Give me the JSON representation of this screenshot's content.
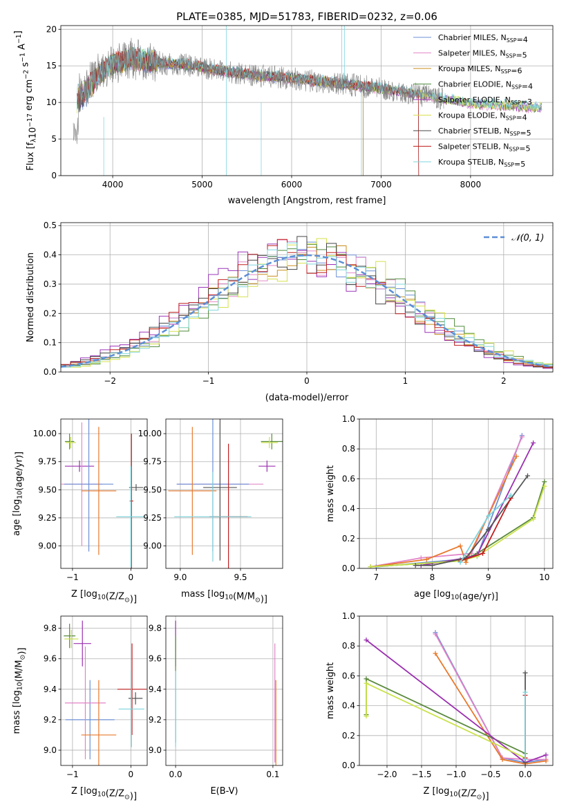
{
  "title": "PLATE=0385, MJD=51783, FIBERID=0232, z=0.06",
  "colors": {
    "Chabrier MILES": "#6b8fd6",
    "Salpeter MILES": "#e28ac7",
    "Kroupa MILES": "#c98d1c",
    "Chabrier ELODIE": "#4f8a3b",
    "Salpeter ELODIE": "#9a35b8",
    "Kroupa ELODIE": "#d6e04a",
    "Chabrier STELIB": "#444444",
    "Salpeter STELIB": "#c11e1e",
    "Kroupa STELIB": "#7fd6de",
    "gaussian": "#5b8ed6",
    "orange": "#e8792b",
    "green": "#5a8a3c",
    "purple": "#9b2fb0",
    "lime": "#c9e24a",
    "cyan": "#7cd3dc",
    "grey": "#555555",
    "pink": "#e184c8",
    "blue": "#6b8fd6"
  },
  "chart_data": [
    {
      "id": "spectrum",
      "type": "line",
      "xlabel": "wavelength [Angstrom, rest frame]",
      "ylabel": "Flux [f",
      "ylabel_sub": "λ",
      "ylabel_rest": "10",
      "ylabel_exp": "−17",
      "ylabel_units": " erg cm",
      "ylabel_units_exp": "−2",
      "ylabel_units2": " s",
      "ylabel_units2_exp": "−1",
      "ylabel_units3": " A",
      "ylabel_units3_exp": "−1",
      "ylabel_end": "]",
      "xlim": [
        3420,
        8920
      ],
      "ylim": [
        0,
        20.5
      ],
      "xticks": [
        4000,
        5000,
        6000,
        7000,
        8000
      ],
      "yticks": [
        0,
        5,
        10,
        15,
        20
      ],
      "legend_position": "top-right",
      "legend": [
        {
          "label": "Chabrier MILES, N",
          "sub": "SSP",
          "eq": "=4"
        },
        {
          "label": "Salpeter MILES, N",
          "sub": "SSP",
          "eq": "=5"
        },
        {
          "label": "Kroupa MILES, N",
          "sub": "SSP",
          "eq": "=6"
        },
        {
          "label": "Chabrier ELODIE, N",
          "sub": "SSP",
          "eq": "=4"
        },
        {
          "label": "Salpeter ELODIE, N",
          "sub": "SSP",
          "eq": "=3"
        },
        {
          "label": "Kroupa ELODIE, N",
          "sub": "SSP",
          "eq": "=4"
        },
        {
          "label": "Chabrier STELIB, N",
          "sub": "SSP",
          "eq": "=5"
        },
        {
          "label": "Salpeter STELIB, N",
          "sub": "SSP",
          "eq": "=5"
        },
        {
          "label": "Kroupa STELIB, N",
          "sub": "SSP",
          "eq": "=5"
        }
      ],
      "continuum": [
        [
          3600,
          11.0
        ],
        [
          3700,
          12.0
        ],
        [
          3800,
          13.5
        ],
        [
          3900,
          14.5
        ],
        [
          4000,
          15.2
        ],
        [
          4200,
          16.0
        ],
        [
          4400,
          15.7
        ],
        [
          4600,
          15.3
        ],
        [
          4800,
          15.2
        ],
        [
          5000,
          14.8
        ],
        [
          5200,
          14.3
        ],
        [
          5400,
          14.0
        ],
        [
          5600,
          13.7
        ],
        [
          5800,
          13.5
        ],
        [
          6000,
          13.3
        ],
        [
          6200,
          13.0
        ],
        [
          6400,
          12.8
        ],
        [
          6600,
          12.5
        ],
        [
          6800,
          12.2
        ],
        [
          7000,
          11.9
        ],
        [
          7200,
          11.5
        ],
        [
          7400,
          11.1
        ],
        [
          7600,
          10.7
        ],
        [
          7800,
          10.3
        ],
        [
          8000,
          9.9
        ],
        [
          8200,
          9.7
        ],
        [
          8400,
          9.6
        ],
        [
          8600,
          9.4
        ],
        [
          8800,
          9.3
        ]
      ],
      "model_dropouts": [
        {
          "series": "Chabrier MILES",
          "x_end": 6800
        },
        {
          "series": "Kroupa MILES",
          "x_end": 6800
        },
        {
          "series": "Salpeter STELIB",
          "x_end": 7420
        },
        {
          "series": "Chabrier STELIB",
          "x_end": 7420
        },
        {
          "series": "Kroupa ELODIE",
          "x_start": 3900
        }
      ]
    },
    {
      "id": "residuals",
      "type": "line",
      "xlabel": "(data-model)/error",
      "ylabel": "Normed distribution",
      "xlim": [
        -2.5,
        2.5
      ],
      "ylim": [
        0,
        0.51
      ],
      "xticks": [
        -2,
        -1,
        0,
        1,
        2
      ],
      "yticks": [
        0.0,
        0.1,
        0.2,
        0.3,
        0.4,
        0.5
      ],
      "legend_position": "top-right",
      "legend_label": "𝒩(0, 1)",
      "bin_width": 0.1,
      "gaussian": {
        "mean": 0,
        "sigma": 1
      },
      "series": [
        {
          "name": "Chabrier MILES",
          "color_key": "Chabrier MILES",
          "offset": 0.0
        },
        {
          "name": "Salpeter MILES",
          "color_key": "Salpeter MILES",
          "offset": 0.02
        },
        {
          "name": "Kroupa MILES",
          "color_key": "Kroupa MILES",
          "offset": 0.05
        },
        {
          "name": "Chabrier ELODIE",
          "color_key": "Chabrier ELODIE",
          "offset": -0.1
        },
        {
          "name": "Salpeter ELODIE",
          "color_key": "Salpeter ELODIE",
          "offset": 0.15
        },
        {
          "name": "Kroupa ELODIE",
          "color_key": "Kroupa ELODIE",
          "offset": -0.12
        },
        {
          "name": "Chabrier STELIB",
          "color_key": "Chabrier STELIB",
          "offset": 0.1
        },
        {
          "name": "Salpeter STELIB",
          "color_key": "Salpeter STELIB",
          "offset": 0.08
        },
        {
          "name": "Kroupa STELIB",
          "color_key": "Kroupa STELIB",
          "offset": -0.03
        }
      ]
    },
    {
      "id": "age-vs-Z",
      "type": "scatter",
      "xlabel": "Z [log",
      "xlabel_sub": "10",
      "xlabel_end": "(Z/Z",
      "xlabel_odot": "⊙",
      "xlabel_close": ")]",
      "ylabel": "age  [log",
      "ylabel_sub": "10",
      "ylabel_end": "(age/yr)]",
      "xlim": [
        -1.2,
        0.28
      ],
      "ylim": [
        8.8,
        10.13
      ],
      "xticks": [
        -1,
        0
      ],
      "yticks": [
        9.0,
        9.25,
        9.5,
        9.75,
        10.0
      ],
      "errorbars": [
        {
          "x": -1.05,
          "xerr": 0.08,
          "y": 9.93,
          "yerr": 0.07,
          "color_key": "green"
        },
        {
          "x": -1.03,
          "xerr": 0.09,
          "y": 9.92,
          "yerr": 0.05,
          "color_key": "lime"
        },
        {
          "x": -0.88,
          "xerr": 0.25,
          "y": 9.71,
          "yerr": 0.05,
          "color_key": "purple"
        },
        {
          "x": -0.84,
          "xerr": 0.35,
          "y": 9.55,
          "yerr": 0.55,
          "color_key": "Salpeter MILES"
        },
        {
          "x": -0.72,
          "xerr": 0.42,
          "y": 9.55,
          "yerr": 0.6,
          "color_key": "blue"
        },
        {
          "x": -0.55,
          "xerr": 0.3,
          "y": 9.49,
          "yerr": 0.57,
          "color_key": "orange"
        },
        {
          "x": 0.09,
          "xerr": 0.12,
          "y": 9.52,
          "yerr": 0.03,
          "color_key": "grey"
        },
        {
          "x": 0.01,
          "xerr": 0.03,
          "y": 9.4,
          "yerr": 0.6,
          "color_key": "Salpeter STELIB"
        },
        {
          "x": 0.0,
          "xerr": 0.25,
          "y": 9.26,
          "yerr": 0.45,
          "color_key": "cyan"
        }
      ]
    },
    {
      "id": "age-vs-mass",
      "type": "scatter",
      "xlabel": "mass [log",
      "xlabel_sub": "10",
      "xlabel_end": "(M/M",
      "xlabel_odot": "⊙",
      "xlabel_close": ")]",
      "xlim": [
        8.88,
        9.85
      ],
      "ylim": [
        8.8,
        10.13
      ],
      "xticks": [
        9.0,
        9.5
      ],
      "yticks": [
        9.0,
        9.25,
        9.5,
        9.75,
        10.0
      ],
      "errorbars": [
        {
          "x": 9.76,
          "xerr": 0.09,
          "y": 9.93,
          "yerr": 0.07,
          "color_key": "green"
        },
        {
          "x": 9.74,
          "xerr": 0.07,
          "y": 9.92,
          "yerr": 0.05,
          "color_key": "lime"
        },
        {
          "x": 9.72,
          "xerr": 0.07,
          "y": 9.71,
          "yerr": 0.05,
          "color_key": "purple"
        },
        {
          "x": 9.33,
          "xerr": 0.36,
          "y": 9.55,
          "yerr": 0.55,
          "color_key": "Salpeter MILES"
        },
        {
          "x": 9.27,
          "xerr": 0.3,
          "y": 9.55,
          "yerr": 0.6,
          "color_key": "blue"
        },
        {
          "x": 9.1,
          "xerr": 0.2,
          "y": 9.49,
          "yerr": 0.57,
          "color_key": "orange"
        },
        {
          "x": 9.33,
          "xerr": 0.14,
          "y": 9.52,
          "yerr": 0.65,
          "color_key": "grey"
        },
        {
          "x": 9.4,
          "xerr": 0.16,
          "y": 9.26,
          "yerr": 0.65,
          "color_key": "Salpeter STELIB"
        },
        {
          "x": 9.27,
          "xerr": 0.32,
          "y": 9.26,
          "yerr": 0.4,
          "color_key": "cyan"
        }
      ]
    },
    {
      "id": "weight-vs-age",
      "type": "line",
      "xlabel": "age  [log",
      "xlabel_sub": "10",
      "xlabel_end": "(age/yr)]",
      "ylabel": "mass weight",
      "xlim": [
        6.7,
        10.15
      ],
      "ylim": [
        0,
        1.0
      ],
      "xticks": [
        7,
        8,
        9,
        10
      ],
      "yticks": [
        0.0,
        0.2,
        0.4,
        0.6,
        0.8,
        1.0
      ],
      "series": [
        {
          "name": "Chabrier MILES",
          "color_key": "blue",
          "x": [
            7.0,
            8.5,
            8.8,
            9.6
          ],
          "y": [
            0.01,
            0.06,
            0.08,
            0.89
          ]
        },
        {
          "name": "Salpeter MILES",
          "color_key": "pink",
          "x": [
            6.9,
            7.8,
            8.7,
            9.6
          ],
          "y": [
            0.01,
            0.07,
            0.1,
            0.88
          ]
        },
        {
          "name": "Kroupa MILES",
          "color_key": "orange",
          "x": [
            6.9,
            7.9,
            8.5,
            8.6,
            9.5
          ],
          "y": [
            0.01,
            0.06,
            0.15,
            0.04,
            0.75
          ]
        },
        {
          "name": "Chabrier ELODIE",
          "color_key": "green",
          "x": [
            6.9,
            8.5,
            8.8,
            9.8,
            10.0
          ],
          "y": [
            0.01,
            0.05,
            0.1,
            0.34,
            0.58
          ]
        },
        {
          "name": "Salpeter ELODIE",
          "color_key": "purple",
          "x": [
            7.8,
            8.6,
            8.8,
            9.8
          ],
          "y": [
            0.02,
            0.07,
            0.09,
            0.84
          ]
        },
        {
          "name": "Kroupa ELODIE",
          "color_key": "lime",
          "x": [
            6.9,
            8.5,
            8.8,
            9.8,
            10.0
          ],
          "y": [
            0.01,
            0.05,
            0.08,
            0.33,
            0.55
          ]
        },
        {
          "name": "Chabrier STELIB",
          "color_key": "grey",
          "x": [
            7.7,
            8.0,
            8.6,
            9.0,
            9.7
          ],
          "y": [
            0.02,
            0.02,
            0.07,
            0.26,
            0.62
          ]
        },
        {
          "name": "Salpeter STELIB",
          "color_key": "Salpeter STELIB",
          "x": [
            8.5,
            8.9,
            9.4
          ],
          "y": [
            0.05,
            0.1,
            0.47
          ]
        },
        {
          "name": "Kroupa STELIB",
          "color_key": "cyan",
          "x": [
            8.5,
            9.0,
            9.4
          ],
          "y": [
            0.04,
            0.35,
            0.49
          ]
        }
      ]
    },
    {
      "id": "mass-vs-Z",
      "type": "scatter",
      "xlabel": "Z [log",
      "xlabel_sub": "10",
      "xlabel_end": "(Z/Z",
      "xlabel_odot": "⊙",
      "xlabel_close": ")]",
      "ylabel": "mass [log",
      "ylabel_sub": "10",
      "ylabel_end": "(M/M",
      "ylabel_odot": "⊙",
      "ylabel_close": ")]",
      "xlim": [
        -1.2,
        0.28
      ],
      "ylim": [
        8.9,
        9.88
      ],
      "xticks": [
        -1,
        0
      ],
      "yticks": [
        9.0,
        9.2,
        9.4,
        9.6,
        9.8
      ],
      "errorbars": [
        {
          "x": -1.05,
          "xerr": 0.1,
          "y": 9.75,
          "yerr": 0.08,
          "color_key": "green"
        },
        {
          "x": -1.02,
          "xerr": 0.12,
          "y": 9.73,
          "yerr": 0.06,
          "color_key": "lime"
        },
        {
          "x": -0.83,
          "xerr": 0.15,
          "y": 9.7,
          "yerr": 0.15,
          "color_key": "purple"
        },
        {
          "x": -0.7,
          "xerr": 0.42,
          "y": 9.2,
          "yerr": 0.26,
          "color_key": "blue"
        },
        {
          "x": -0.78,
          "xerr": 0.35,
          "y": 9.31,
          "yerr": 0.37,
          "color_key": "pink"
        },
        {
          "x": -0.55,
          "xerr": 0.3,
          "y": 9.1,
          "yerr": 0.36,
          "color_key": "orange"
        },
        {
          "x": 0.02,
          "xerr": 0.25,
          "y": 9.4,
          "yerr": 0.3,
          "color_key": "Salpeter STELIB"
        },
        {
          "x": 0.08,
          "xerr": 0.12,
          "y": 9.34,
          "yerr": 0.04,
          "color_key": "grey"
        },
        {
          "x": 0.01,
          "xerr": 0.22,
          "y": 9.27,
          "yerr": 0.25,
          "color_key": "cyan"
        }
      ]
    },
    {
      "id": "mass-vs-ebv",
      "type": "scatter",
      "xlabel": "E(B-V)",
      "xlim": [
        -0.01,
        0.11
      ],
      "ylim": [
        8.9,
        9.88
      ],
      "xticks": [
        0.0,
        0.1
      ],
      "yticks": [
        9.0,
        9.2,
        9.4,
        9.6,
        9.8
      ],
      "errorbars": [
        {
          "x": 0.0,
          "xerr": 0.0,
          "y": 9.75,
          "yerr": 0.1,
          "color_key": "lime"
        },
        {
          "x": 0.0,
          "xerr": 0.0,
          "y": 9.7,
          "yerr": 0.15,
          "color_key": "purple"
        },
        {
          "x": 0.0,
          "xerr": 0.0,
          "y": 9.4,
          "yerr": 0.35,
          "color_key": "green"
        },
        {
          "x": 0.0,
          "xerr": 0.0,
          "y": 9.27,
          "yerr": 0.25,
          "color_key": "cyan"
        },
        {
          "x": 0.102,
          "xerr": 0.0,
          "y": 9.31,
          "yerr": 0.39,
          "color_key": "pink"
        },
        {
          "x": 0.103,
          "xerr": 0.0,
          "y": 9.1,
          "yerr": 0.36,
          "color_key": "orange"
        }
      ]
    },
    {
      "id": "weight-vs-Z",
      "type": "line",
      "xlabel": "Z [log",
      "xlabel_sub": "10",
      "xlabel_end": "(Z/Z",
      "xlabel_odot": "⊙",
      "xlabel_close": ")]",
      "ylabel": "mass weight",
      "xlim": [
        -2.4,
        0.4
      ],
      "ylim": [
        0,
        1.0
      ],
      "xticks": [
        -2.0,
        -1.5,
        -1.0,
        -0.5,
        0.0
      ],
      "xtick_labels": [
        "−2.0",
        "−1.5",
        "−1.0",
        "−0.5",
        "0.0"
      ],
      "yticks": [
        0.0,
        0.2,
        0.4,
        0.6,
        0.8,
        1.0
      ],
      "series": [
        {
          "name": "Chabrier MILES",
          "color_key": "blue",
          "x": [
            -1.3,
            -0.33,
            0.0,
            0.3
          ],
          "y": [
            0.89,
            0.05,
            0.02,
            0.04
          ]
        },
        {
          "name": "Salpeter MILES",
          "color_key": "pink",
          "x": [
            -1.3,
            -0.33,
            0.0,
            0.3
          ],
          "y": [
            0.88,
            0.05,
            0.04,
            0.04
          ]
        },
        {
          "name": "Kroupa MILES",
          "color_key": "orange",
          "x": [
            -1.3,
            -0.33,
            0.0,
            0.3
          ],
          "y": [
            0.75,
            0.04,
            0.01,
            0.03
          ]
        },
        {
          "name": "Chabrier ELODIE",
          "color_key": "green",
          "x": [
            -2.3,
            -2.3,
            0.0
          ],
          "y": [
            0.34,
            0.58,
            0.08
          ]
        },
        {
          "name": "Salpeter ELODIE",
          "color_key": "purple",
          "x": [
            -2.3,
            0.0,
            0.3
          ],
          "y": [
            0.84,
            0.02,
            0.07
          ]
        },
        {
          "name": "Kroupa ELODIE",
          "color_key": "lime",
          "x": [
            -2.3,
            -2.3,
            0.0
          ],
          "y": [
            0.33,
            0.55,
            0.05
          ]
        },
        {
          "name": "Chabrier STELIB",
          "color_key": "grey",
          "x": [
            0.0,
            0.0
          ],
          "y": [
            0.62,
            0.02
          ]
        },
        {
          "name": "Salpeter STELIB",
          "color_key": "Salpeter STELIB",
          "x": [
            0.0,
            0.0
          ],
          "y": [
            0.47,
            0.05
          ]
        },
        {
          "name": "Kroupa STELIB",
          "color_key": "cyan",
          "x": [
            0.0,
            0.0
          ],
          "y": [
            0.49,
            0.04
          ]
        }
      ]
    }
  ]
}
